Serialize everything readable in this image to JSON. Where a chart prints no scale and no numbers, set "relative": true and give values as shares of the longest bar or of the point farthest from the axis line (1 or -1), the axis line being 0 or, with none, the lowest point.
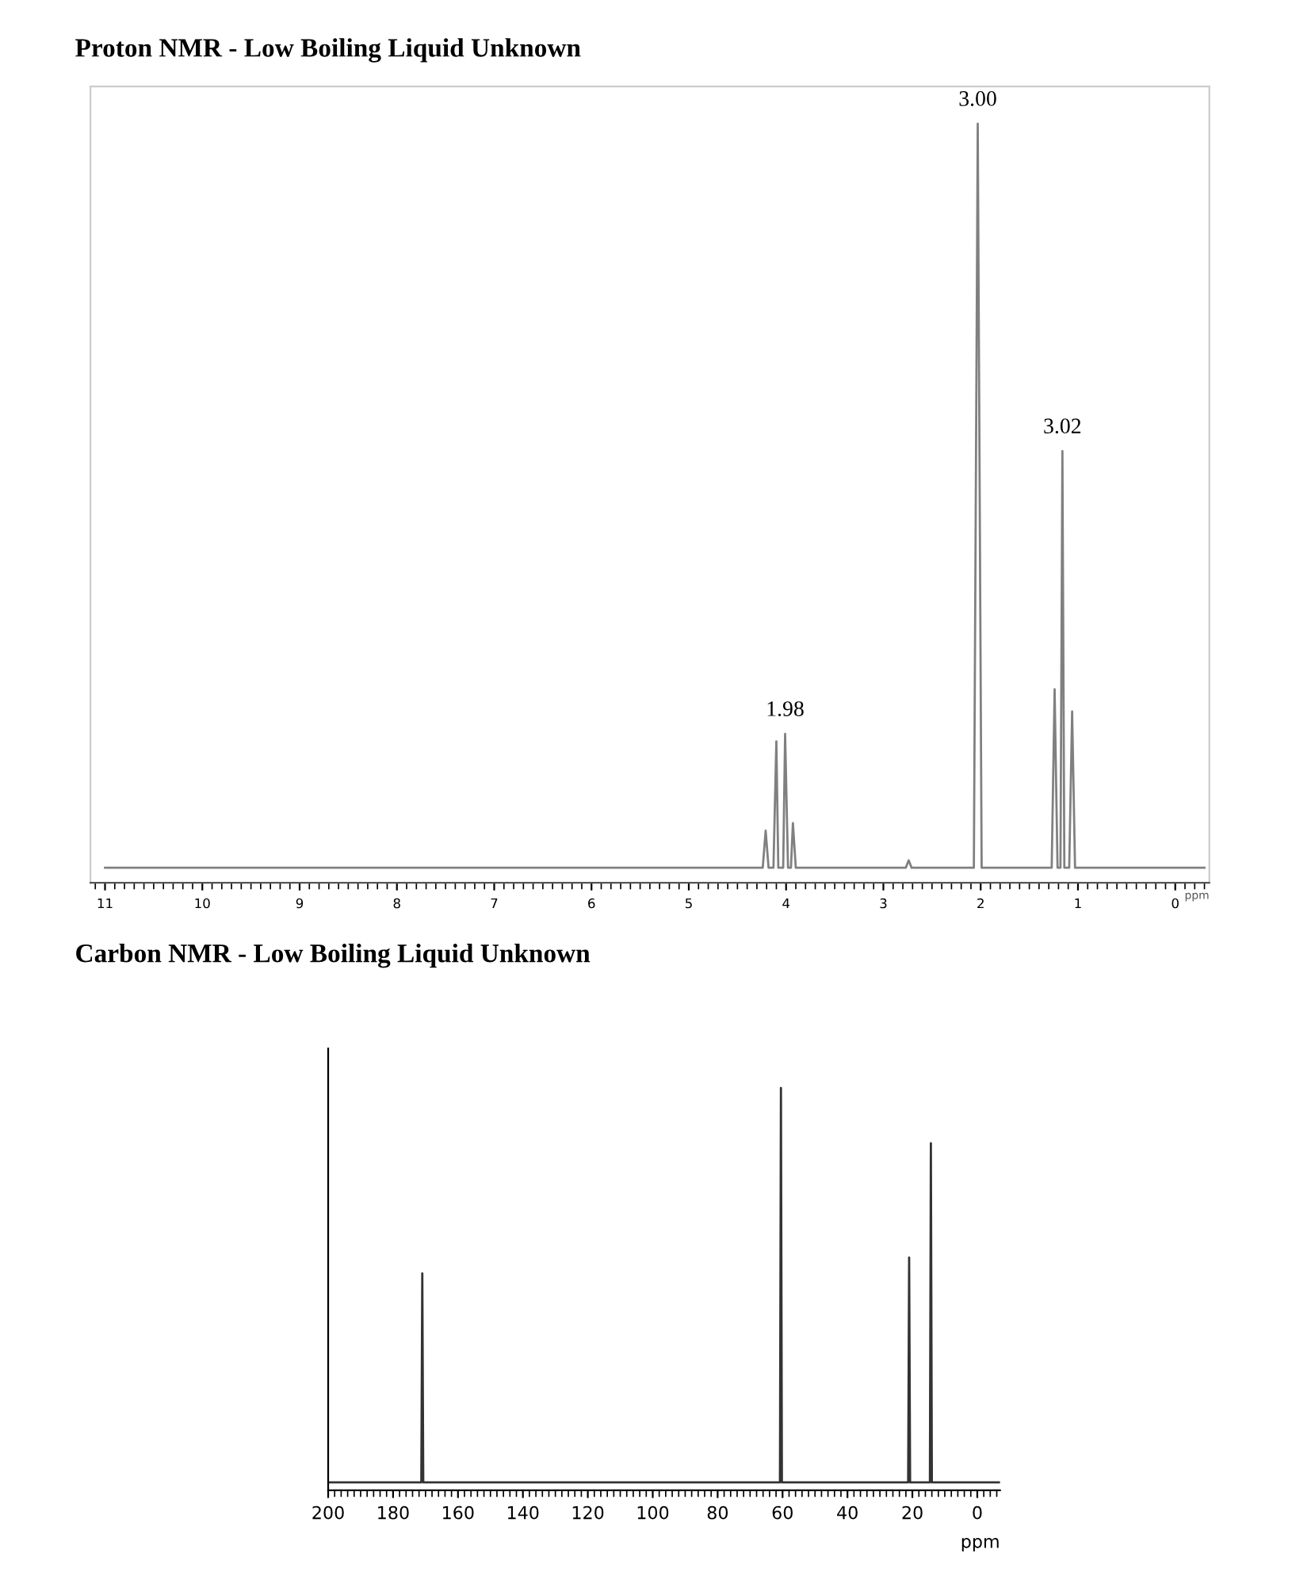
{
  "chart_data": [
    {
      "type": "line",
      "title": "Proton NMR - Low Boiling Liquid Unknown",
      "xlabel": "ppm",
      "relative": true,
      "tick_labels": "x",
      "xlim": [
        11.15,
        -0.35
      ],
      "xticks": [
        11,
        10,
        9,
        8,
        7,
        6,
        5,
        4,
        3,
        2,
        1,
        0
      ],
      "annotations": [
        {
          "text": "1.98",
          "x": 4.01,
          "y": 0.18
        },
        {
          "text": "3.00",
          "x": 2.03,
          "y": 1.0
        },
        {
          "text": "3.02",
          "x": 1.16,
          "y": 0.56
        }
      ],
      "series": [
        {
          "color": "#808080",
          "x": [
            11.0,
            4.24,
            4.21,
            4.18,
            4.13,
            4.1,
            4.08,
            4.03,
            4.01,
            3.98,
            3.95,
            3.93,
            3.9,
            2.77,
            2.74,
            2.71,
            2.07,
            2.03,
            1.99,
            1.27,
            1.24,
            1.21,
            1.18,
            1.16,
            1.14,
            1.09,
            1.06,
            1.03,
            -0.3
          ],
          "values": [
            0,
            0,
            0.05,
            0,
            0,
            0.17,
            0,
            0,
            0.18,
            0,
            0,
            0.06,
            0,
            0,
            0.01,
            0,
            0,
            1.0,
            0,
            0,
            0.24,
            0,
            0,
            0.56,
            0,
            0,
            0.21,
            0,
            0
          ]
        }
      ]
    },
    {
      "type": "line",
      "title": "Carbon NMR - Low Boiling Liquid Unknown",
      "xlabel": "ppm",
      "relative": true,
      "tick_labels": "x",
      "xlim": [
        200,
        -7
      ],
      "xticks": [
        200,
        180,
        160,
        140,
        120,
        100,
        80,
        60,
        40,
        20,
        0
      ],
      "series": [
        {
          "color": "#333333",
          "x": [
            200,
            171.3,
            171,
            170.7,
            60.8,
            60.5,
            60.2,
            21.3,
            21,
            20.7,
            14.6,
            14.3,
            14,
            -7
          ],
          "values": [
            0,
            0,
            0.53,
            0,
            0,
            1.0,
            0,
            0,
            0.57,
            0,
            0,
            0.86,
            0,
            0
          ]
        }
      ]
    }
  ]
}
